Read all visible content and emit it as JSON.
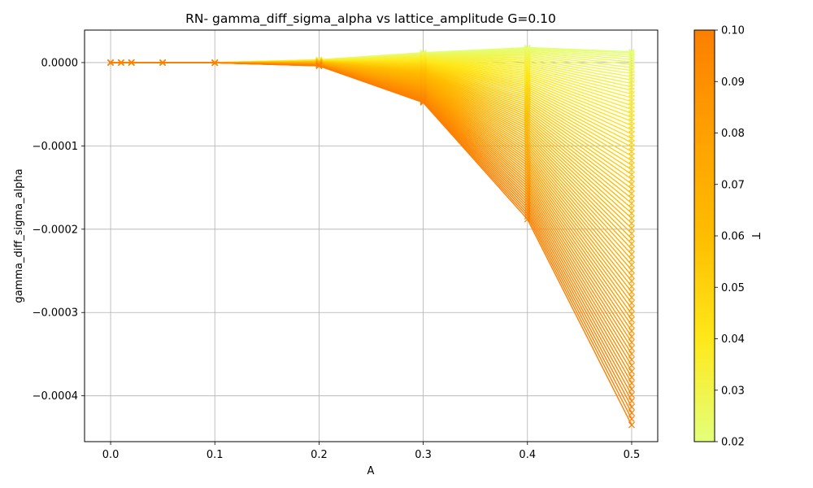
{
  "chart_data": {
    "type": "line",
    "title": "RN- gamma_diff_sigma_alpha vs lattice_amplitude G=0.10",
    "xlabel": "A",
    "ylabel": "gamma_diff_sigma_alpha",
    "x": [
      0.0,
      0.01,
      0.02,
      0.05,
      0.1,
      0.2,
      0.3,
      0.4,
      0.5
    ],
    "xlim": [
      -0.025,
      0.525
    ],
    "ylim": [
      -0.000455,
      3.9e-05
    ],
    "x_ticks": [
      "0.0",
      "0.1",
      "0.2",
      "0.3",
      "0.4",
      "0.5"
    ],
    "y_ticks": [
      "0.0000",
      "−0.0001",
      "−0.0002",
      "−0.0003",
      "−0.0004"
    ],
    "y_tick_values": [
      0.0,
      -0.0001,
      -0.0002,
      -0.0003,
      -0.0004
    ],
    "grid": true,
    "marker": "x",
    "color_by": "T",
    "T_range": [
      0.02,
      0.1
    ],
    "series_count": 81,
    "envelope": {
      "lowest_T": [
        0.0,
        0.0,
        0.0,
        0.0,
        0.0,
        3.5e-06,
        1.2e-05,
        1.8e-05,
        1.3e-05
      ],
      "highest_T": [
        0.0,
        0.0,
        0.0,
        0.0,
        -2e-07,
        -4e-06,
        -4.8e-05,
        -0.000188,
        -0.000435
      ]
    },
    "colorbar": {
      "label": "T",
      "min": 0.02,
      "max": 0.1,
      "ticks": [
        "0.02",
        "0.03",
        "0.04",
        "0.05",
        "0.06",
        "0.07",
        "0.08",
        "0.09",
        "0.10"
      ],
      "tick_values": [
        0.02,
        0.03,
        0.04,
        0.05,
        0.06,
        0.07,
        0.08,
        0.09,
        0.1
      ],
      "colormap": "Wistia",
      "colors": [
        "#e4ff7a",
        "#ffe81a",
        "#ffbd00",
        "#ffa000",
        "#fc7f00"
      ]
    },
    "grid_color": "#b0b0b0"
  }
}
